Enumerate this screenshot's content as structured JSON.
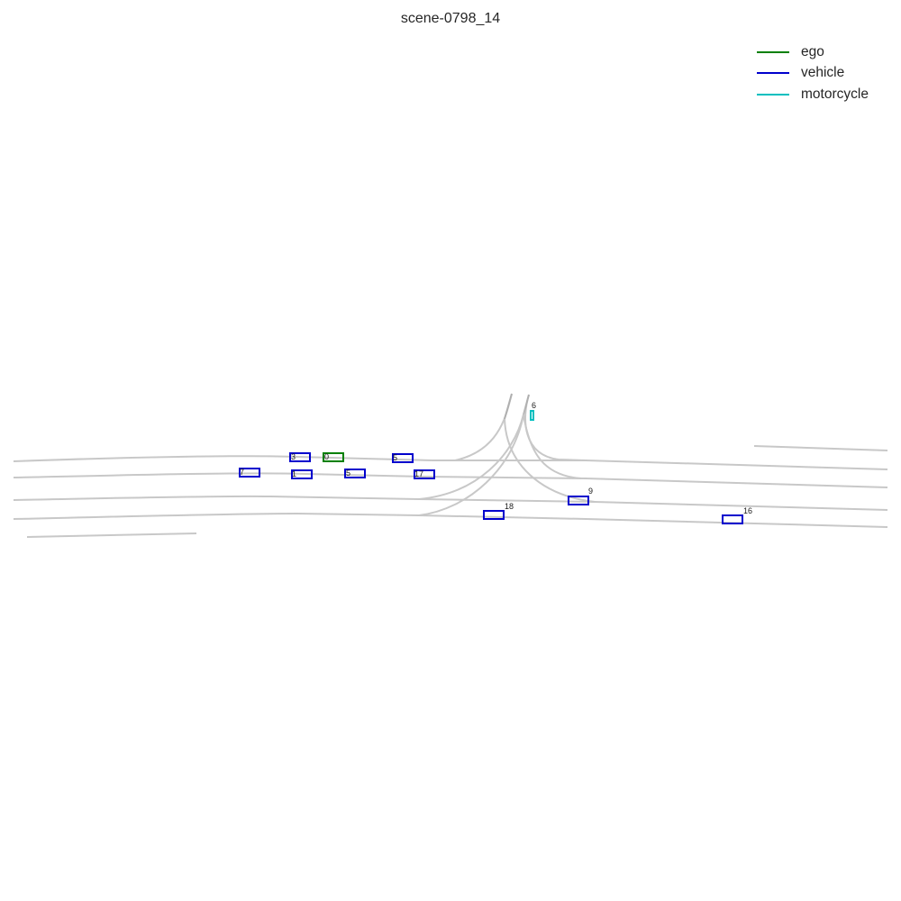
{
  "title": "scene-0798_14",
  "legend": [
    {
      "label": "ego",
      "color": "#008000"
    },
    {
      "label": "vehicle",
      "color": "#0000cd"
    },
    {
      "label": "motorcycle",
      "color": "#00bfbf"
    }
  ],
  "agents": [
    {
      "id": "0",
      "type": "ego"
    },
    {
      "id": "3",
      "type": "vehicle"
    },
    {
      "id": "5",
      "type": "vehicle"
    },
    {
      "id": "7",
      "type": "vehicle"
    },
    {
      "id": "1",
      "type": "vehicle"
    },
    {
      "id": "5",
      "type": "vehicle"
    },
    {
      "id": "17",
      "type": "vehicle"
    },
    {
      "id": "6",
      "type": "motorcycle"
    },
    {
      "id": "9",
      "type": "vehicle"
    },
    {
      "id": "18",
      "type": "vehicle"
    },
    {
      "id": "16",
      "type": "vehicle"
    }
  ]
}
